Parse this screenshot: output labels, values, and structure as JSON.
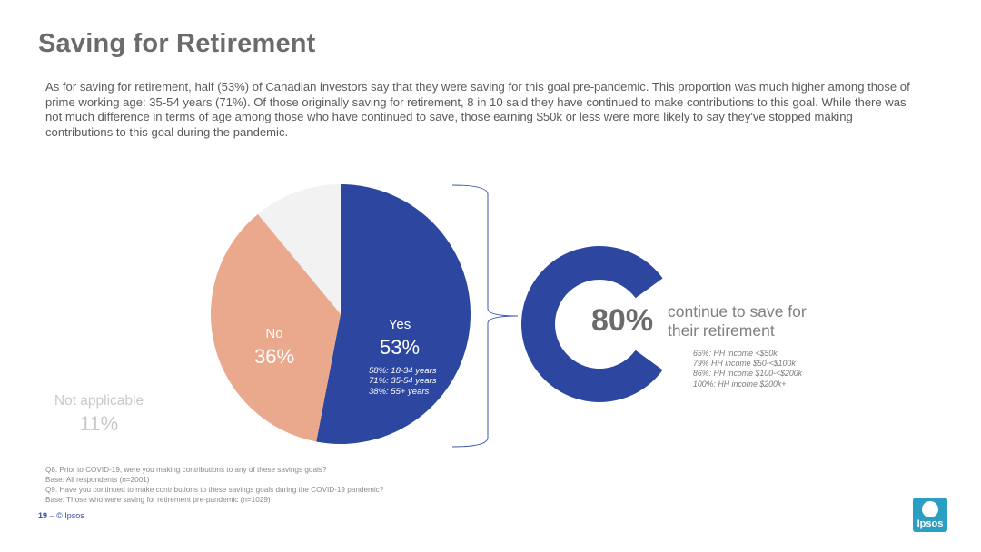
{
  "page": {
    "title": "Saving for Retirement",
    "intro": "As for saving for retirement, half (53%) of Canadian investors say that they were saving for this goal pre-pandemic. This proportion was much higher among those of prime working age: 35-54 years (71%). Of those originally saving for retirement, 8 in 10 said they have continued to make contributions to this goal. While there was not much difference in terms of age among those who have continued to save, those earning $50k or less were more likely to say they've stopped making contributions to this goal during the pandemic."
  },
  "chart_data": [
    {
      "type": "pie",
      "categories": [
        "Yes",
        "No",
        "Not applicable"
      ],
      "values": [
        53,
        36,
        11
      ],
      "labels": [
        "53%",
        "36%",
        "11%"
      ],
      "colors": [
        "#2d47a0",
        "#eaa88c",
        "#f2f2f2"
      ],
      "notes": {
        "yes": [
          "58%: 18-34 years",
          "71%: 35-54 years",
          "38%: 55+ years"
        ]
      }
    },
    {
      "type": "gauge",
      "value": 80,
      "label": "80%",
      "caption": "continue to save for their retirement",
      "color": "#2d47a0",
      "notes": [
        "65%: HH income <$50k",
        "79% HH income $50-<$100k",
        "86%: HH income $100-<$200k",
        "100%: HH income $200k+"
      ]
    }
  ],
  "footer": {
    "notes": [
      "Q8. Prior to COVID-19, were you making contributions to any of these savings goals?",
      "Base: All respondents (n=2001)",
      "Q9. Have you continued to make contributions to these savings goals during the COVID-19 pandemic?",
      "Base: Those who were saving for retirement pre-pandemic (n=1029)"
    ],
    "page_number": "19",
    "separator": "–",
    "copyright": "© Ipsos",
    "logo_text": "Ipsos"
  }
}
